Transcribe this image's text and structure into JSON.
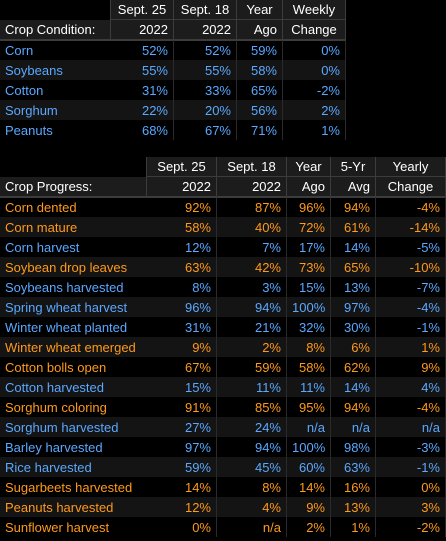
{
  "colors": {
    "blue": "#5aa8ff",
    "orange": "#ff9a1a",
    "header_text": "#ffffff"
  },
  "condition": {
    "title": "Crop Condition:",
    "headers_top": [
      "Sept. 25",
      "Sept. 18",
      "Year",
      "Weekly"
    ],
    "headers_bottom": [
      "2022",
      "2022",
      "Ago",
      "Change"
    ],
    "rows": [
      {
        "label": "Corn",
        "color": "blue",
        "values": [
          "52%",
          "52%",
          "59%",
          "0%"
        ]
      },
      {
        "label": "Soybeans",
        "color": "blue",
        "values": [
          "55%",
          "55%",
          "58%",
          "0%"
        ]
      },
      {
        "label": "Cotton",
        "color": "blue",
        "values": [
          "31%",
          "33%",
          "65%",
          "-2%"
        ]
      },
      {
        "label": "Sorghum",
        "color": "blue",
        "values": [
          "22%",
          "20%",
          "56%",
          "2%"
        ]
      },
      {
        "label": "Peanuts",
        "color": "blue",
        "values": [
          "68%",
          "67%",
          "71%",
          "1%"
        ]
      }
    ]
  },
  "progress": {
    "title": "Crop Progress:",
    "headers_top": [
      "Sept. 25",
      "Sept. 18",
      "Year",
      "5-Yr",
      "Yearly"
    ],
    "headers_bottom": [
      "2022",
      "2022",
      "Ago",
      "Avg",
      "Change"
    ],
    "rows": [
      {
        "label": "Corn dented",
        "color": "orange",
        "values": [
          "92%",
          "87%",
          "96%",
          "94%",
          "-4%"
        ]
      },
      {
        "label": "Corn mature",
        "color": "orange",
        "values": [
          "58%",
          "40%",
          "72%",
          "61%",
          "-14%"
        ]
      },
      {
        "label": "Corn harvest",
        "color": "blue",
        "values": [
          "12%",
          "7%",
          "17%",
          "14%",
          "-5%"
        ]
      },
      {
        "label": "Soybean drop leaves",
        "color": "orange",
        "values": [
          "63%",
          "42%",
          "73%",
          "65%",
          "-10%"
        ]
      },
      {
        "label": "Soybeans harvested",
        "color": "blue",
        "values": [
          "8%",
          "3%",
          "15%",
          "13%",
          "-7%"
        ]
      },
      {
        "label": "Spring wheat harvest",
        "color": "blue",
        "values": [
          "96%",
          "94%",
          "100%",
          "97%",
          "-4%"
        ]
      },
      {
        "label": "Winter wheat planted",
        "color": "blue",
        "values": [
          "31%",
          "21%",
          "32%",
          "30%",
          "-1%"
        ]
      },
      {
        "label": "Winter wheat emerged",
        "color": "orange",
        "values": [
          "9%",
          "2%",
          "8%",
          "6%",
          "1%"
        ]
      },
      {
        "label": "Cotton bolls open",
        "color": "orange",
        "values": [
          "67%",
          "59%",
          "58%",
          "62%",
          "9%"
        ]
      },
      {
        "label": "Cotton harvested",
        "color": "blue",
        "values": [
          "15%",
          "11%",
          "11%",
          "14%",
          "4%"
        ]
      },
      {
        "label": "Sorghum coloring",
        "color": "orange",
        "values": [
          "91%",
          "85%",
          "95%",
          "94%",
          "-4%"
        ]
      },
      {
        "label": "Sorghum harvested",
        "color": "blue",
        "values": [
          "27%",
          "24%",
          "n/a",
          "n/a",
          "n/a"
        ]
      },
      {
        "label": "Barley harvested",
        "color": "blue",
        "values": [
          "97%",
          "94%",
          "100%",
          "98%",
          "-3%"
        ]
      },
      {
        "label": "Rice harvested",
        "color": "blue",
        "values": [
          "59%",
          "45%",
          "60%",
          "63%",
          "-1%"
        ]
      },
      {
        "label": "Sugarbeets harvested",
        "color": "orange",
        "values": [
          "14%",
          "8%",
          "14%",
          "16%",
          "0%"
        ]
      },
      {
        "label": "Peanuts harvested",
        "color": "orange",
        "values": [
          "12%",
          "4%",
          "9%",
          "13%",
          "3%"
        ]
      },
      {
        "label": "Sunflower harvest",
        "color": "orange",
        "values": [
          "0%",
          "n/a",
          "2%",
          "1%",
          "-2%"
        ]
      }
    ]
  }
}
